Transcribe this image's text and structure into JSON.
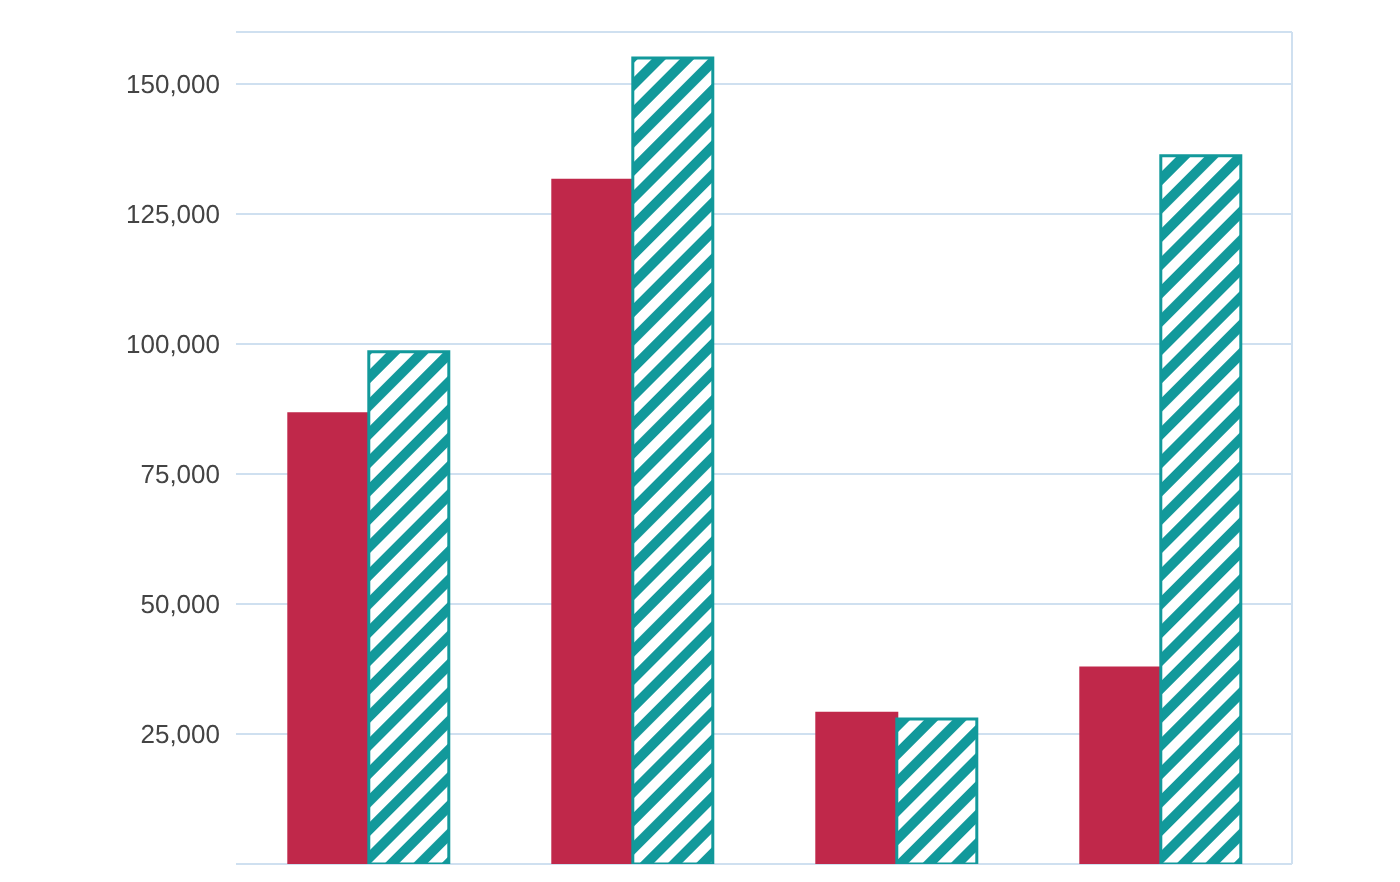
{
  "chart_data": {
    "type": "bar",
    "categories": [
      null,
      null,
      null,
      null
    ],
    "series": [
      {
        "color": "#c0284a",
        "values": [
          86600,
          131500,
          29000,
          37700
        ]
      },
      {
        "color": "#12999b",
        "values": [
          98500,
          155000,
          27900,
          136200
        ]
      }
    ],
    "ylim": [
      0,
      160000
    ],
    "yticks": [
      {
        "value": 25000,
        "label": "25,000"
      },
      {
        "value": 50000,
        "label": "50,000"
      },
      {
        "value": 75000,
        "label": "75,000"
      },
      {
        "value": 100000,
        "label": "100,000"
      },
      {
        "value": 125000,
        "label": "125,000"
      },
      {
        "value": 150000,
        "label": "150,000"
      }
    ],
    "grid": "y",
    "tick_labels": "y"
  }
}
